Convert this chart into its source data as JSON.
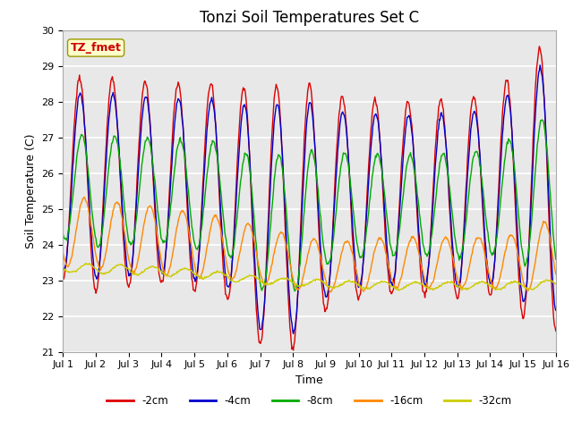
{
  "title": "Tonzi Soil Temperatures Set C",
  "xlabel": "Time",
  "ylabel": "Soil Temperature (C)",
  "ylim": [
    21.0,
    30.0
  ],
  "yticks": [
    21.0,
    22.0,
    23.0,
    24.0,
    25.0,
    26.0,
    27.0,
    28.0,
    29.0,
    30.0
  ],
  "xtick_labels": [
    "Jul 1",
    "Jul 2",
    "Jul 3",
    "Jul 4",
    "Jul 5",
    "Jul 6",
    "Jul 7",
    "Jul 8",
    "Jul 9",
    "Jul 10",
    "Jul 11",
    "Jul 12",
    "Jul 13",
    "Jul 14",
    "Jul 15",
    "Jul 16"
  ],
  "annotation": "TZ_fmet",
  "annotation_color": "#cc0000",
  "annotation_bg": "#ffffcc",
  "series_colors": [
    "#dd0000",
    "#0000cc",
    "#00aa00",
    "#ff8800",
    "#cccc00"
  ],
  "series_labels": [
    "-2cm",
    "-4cm",
    "-8cm",
    "-16cm",
    "-32cm"
  ],
  "n_days": 15,
  "points_per_day": 48,
  "plot_bg": "#e8e8e8",
  "grid_color": "white",
  "title_fontsize": 12,
  "label_fontsize": 9,
  "tick_fontsize": 8,
  "line_width": 1.0
}
